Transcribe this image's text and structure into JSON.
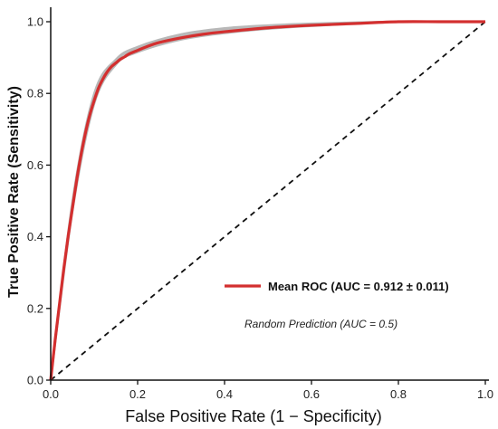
{
  "chart_data": {
    "type": "line",
    "xlabel": "False Positive Rate (1 − Specificity)",
    "ylabel": "True Positive Rate (Sensitivity)",
    "xlim": [
      0.0,
      1.0
    ],
    "ylim": [
      0.0,
      1.0
    ],
    "x_ticks": [
      "0.0",
      "0.2",
      "0.4",
      "0.6",
      "0.8",
      "1.0"
    ],
    "y_ticks": [
      "0.0",
      "0.2",
      "0.4",
      "0.6",
      "0.8",
      "1.0"
    ],
    "grid": false,
    "legend_position": "center-right",
    "series": [
      {
        "name": "Mean ROC (AUC = 0.912 ± 0.011)",
        "color": "#d32f2f",
        "x": [
          0.0,
          0.01,
          0.02,
          0.03,
          0.04,
          0.05,
          0.06,
          0.07,
          0.08,
          0.09,
          0.1,
          0.11,
          0.12,
          0.13,
          0.14,
          0.15,
          0.16,
          0.17,
          0.18,
          0.2,
          0.22,
          0.25,
          0.3,
          0.35,
          0.4,
          0.5,
          0.6,
          0.7,
          0.8,
          0.9,
          1.0
        ],
        "y": [
          0.0,
          0.11,
          0.21,
          0.31,
          0.4,
          0.48,
          0.56,
          0.63,
          0.69,
          0.74,
          0.78,
          0.815,
          0.84,
          0.86,
          0.875,
          0.885,
          0.895,
          0.902,
          0.91,
          0.92,
          0.93,
          0.942,
          0.955,
          0.965,
          0.972,
          0.983,
          0.99,
          0.995,
          1.0,
          1.0,
          1.0
        ]
      },
      {
        "name": "Random Prediction (AUC = 0.5)",
        "color": "#111111",
        "dash": true,
        "x": [
          0.0,
          1.0
        ],
        "y": [
          0.0,
          1.0
        ]
      }
    ],
    "fold_curves_color": "#b8b8b8",
    "fold_curves": [
      {
        "x": [
          0.0,
          0.05,
          0.1,
          0.15,
          0.2,
          0.3,
          0.4,
          0.5,
          0.6,
          0.8,
          1.0
        ],
        "y": [
          0.0,
          0.5,
          0.8,
          0.895,
          0.93,
          0.965,
          0.982,
          0.99,
          0.995,
          1.0,
          1.0
        ]
      },
      {
        "x": [
          0.0,
          0.05,
          0.1,
          0.15,
          0.2,
          0.3,
          0.4,
          0.5,
          0.6,
          0.8,
          1.0
        ],
        "y": [
          0.0,
          0.47,
          0.77,
          0.88,
          0.915,
          0.95,
          0.968,
          0.98,
          0.988,
          1.0,
          1.0
        ]
      },
      {
        "x": [
          0.0,
          0.05,
          0.1,
          0.15,
          0.2,
          0.3,
          0.4,
          0.5,
          0.6,
          0.8,
          1.0
        ],
        "y": [
          0.0,
          0.49,
          0.79,
          0.89,
          0.925,
          0.96,
          0.978,
          0.988,
          0.993,
          1.0,
          1.0
        ]
      }
    ]
  }
}
